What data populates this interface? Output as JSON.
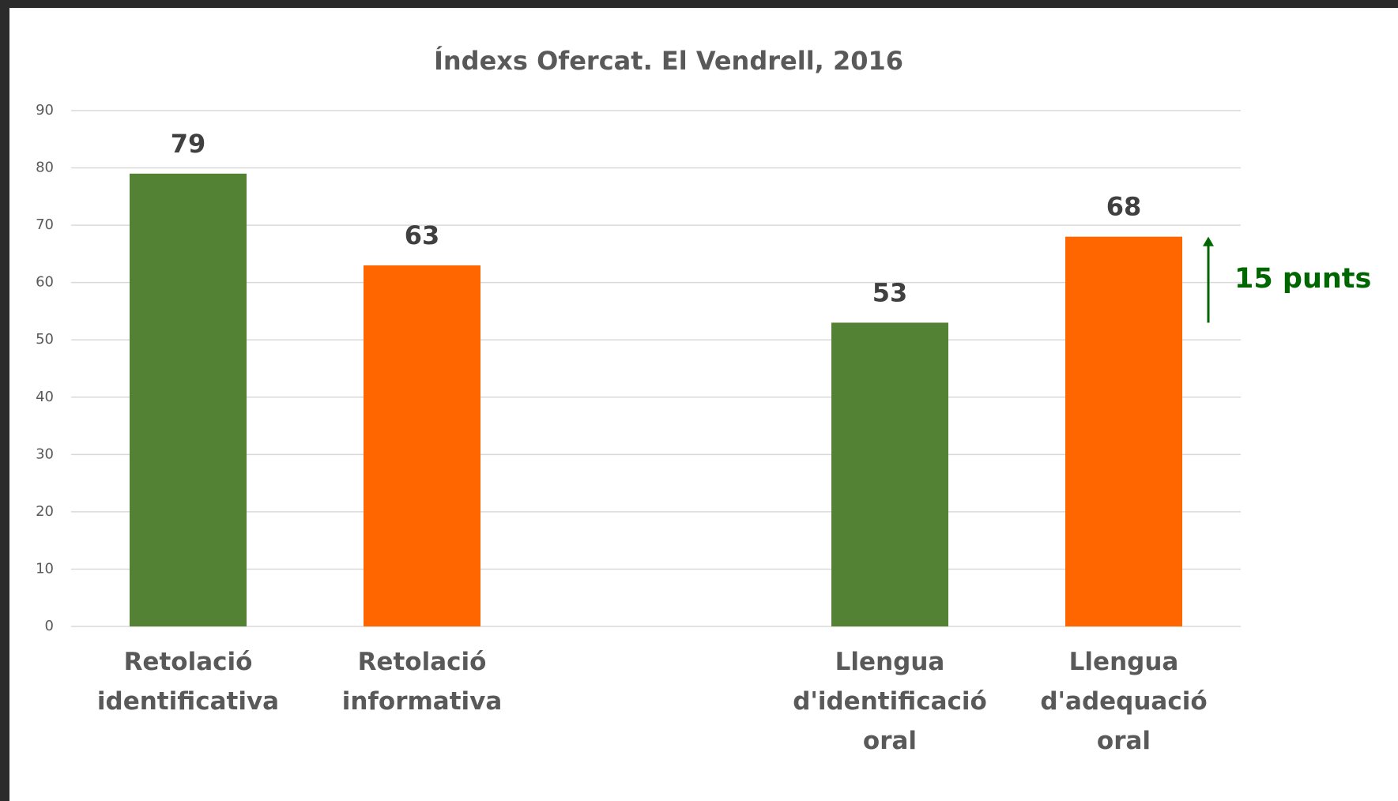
{
  "chart_data": {
    "type": "bar",
    "title": "Índexs Ofercat. El Vendrell, 2016",
    "categories": [
      "Retolació identificativa",
      "Retolació informativa",
      null,
      "Llengua d'identificació oral",
      "Llengua d'adequació oral"
    ],
    "values": [
      79,
      63,
      null,
      53,
      68
    ],
    "colors": [
      "#548235",
      "#ff6600",
      null,
      "#548235",
      "#ff6600"
    ],
    "ylim": [
      0,
      90
    ],
    "yticks": [
      0,
      10,
      20,
      30,
      40,
      50,
      60,
      70,
      80,
      90
    ],
    "grid": true,
    "annotation": {
      "text": "15 punts",
      "color": "#006600"
    }
  }
}
